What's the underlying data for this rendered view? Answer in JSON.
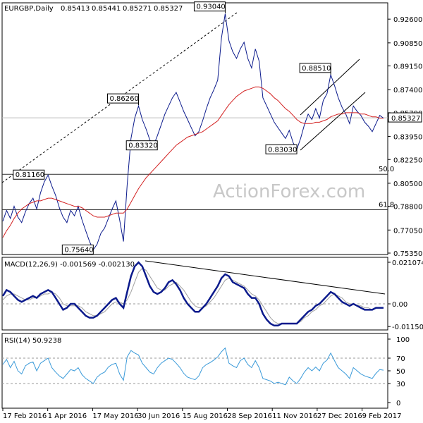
{
  "header": {
    "title": "EURGBP,Daily",
    "ohlc": [
      "0.85413",
      "0.85441",
      "0.85271",
      "0.85327"
    ]
  },
  "watermark": "ActionForex.com",
  "colors": {
    "price": "#0b1a8c",
    "ma": "#d32020",
    "macd": "#0b1a8c",
    "signal": "#a0a0a0",
    "rsi": "#3a9ad9",
    "hline": "#2f2f2f"
  },
  "chart_data": [
    {
      "type": "line",
      "title": "EURGBP,Daily",
      "ylim": [
        0.7535,
        0.937
      ],
      "y_ticks": [
        "0.92600",
        "0.90850",
        "0.89150",
        "0.87400",
        "0.85700",
        "0.83950",
        "0.82250",
        "0.80500",
        "0.78800",
        "0.77050",
        "0.75350"
      ],
      "current_price": "0.85327",
      "x_labels": [
        "17 Feb 2016",
        "1 Apr 2016",
        "17 May 2016",
        "30 Jun 2016",
        "15 Aug 2016",
        "28 Sep 2016",
        "11 Nov 2016",
        "27 Dec 2016",
        "9 Feb 2017"
      ],
      "series": [
        {
          "values": [
            0.777,
            0.785,
            0.779,
            0.788,
            0.78,
            0.776,
            0.784,
            0.79,
            0.794,
            0.786,
            0.798,
            0.806,
            0.811,
            0.803,
            0.796,
            0.787,
            0.78,
            0.776,
            0.785,
            0.781,
            0.788,
            0.778,
            0.77,
            0.762,
            0.756,
            0.76,
            0.768,
            0.772,
            0.779,
            0.786,
            0.792,
            0.778,
            0.762,
            0.804,
            0.838,
            0.853,
            0.862,
            0.852,
            0.845,
            0.837,
            0.833,
            0.84,
            0.848,
            0.856,
            0.862,
            0.868,
            0.872,
            0.865,
            0.858,
            0.852,
            0.846,
            0.84,
            0.843,
            0.851,
            0.86,
            0.868,
            0.874,
            0.881,
            0.912,
            0.93,
            0.91,
            0.902,
            0.897,
            0.904,
            0.909,
            0.897,
            0.89,
            0.904,
            0.895,
            0.868,
            0.862,
            0.856,
            0.85,
            0.846,
            0.842,
            0.838,
            0.844,
            0.835,
            0.83,
            0.838,
            0.848,
            0.856,
            0.852,
            0.86,
            0.853,
            0.866,
            0.871,
            0.885,
            0.877,
            0.868,
            0.861,
            0.856,
            0.849,
            0.862,
            0.858,
            0.855,
            0.85,
            0.847,
            0.843,
            0.849,
            0.855,
            0.853
          ]
        },
        {
          "values": [
            0.765,
            0.77,
            0.774,
            0.779,
            0.783,
            0.786,
            0.788,
            0.79,
            0.791,
            0.792,
            0.792,
            0.793,
            0.794,
            0.794,
            0.793,
            0.792,
            0.791,
            0.79,
            0.789,
            0.788,
            0.788,
            0.787,
            0.785,
            0.783,
            0.781,
            0.78,
            0.78,
            0.78,
            0.781,
            0.782,
            0.783,
            0.783,
            0.783,
            0.786,
            0.791,
            0.796,
            0.801,
            0.805,
            0.809,
            0.812,
            0.815,
            0.818,
            0.821,
            0.824,
            0.827,
            0.83,
            0.833,
            0.835,
            0.837,
            0.839,
            0.84,
            0.841,
            0.842,
            0.843,
            0.845,
            0.847,
            0.849,
            0.851,
            0.855,
            0.859,
            0.863,
            0.866,
            0.869,
            0.871,
            0.873,
            0.874,
            0.875,
            0.876,
            0.876,
            0.875,
            0.873,
            0.871,
            0.868,
            0.866,
            0.863,
            0.86,
            0.858,
            0.855,
            0.852,
            0.85,
            0.849,
            0.849,
            0.849,
            0.85,
            0.85,
            0.851,
            0.852,
            0.854,
            0.855,
            0.856,
            0.856,
            0.857,
            0.857,
            0.857,
            0.857,
            0.856,
            0.856,
            0.855,
            0.854,
            0.854,
            0.853,
            0.853
          ]
        }
      ],
      "annotations": [
        {
          "label": "0.81160",
          "x": 11,
          "y": 0.8116
        },
        {
          "label": "0.75640",
          "x": 24,
          "y": 0.7564
        },
        {
          "label": "0.86260",
          "x": 36,
          "y": 0.8626
        },
        {
          "label": "0.83320",
          "x": 41,
          "y": 0.8332
        },
        {
          "label": "0.93040",
          "x": 59,
          "y": 0.9304
        },
        {
          "label": "0.83030",
          "x": 78,
          "y": 0.8303
        },
        {
          "label": "0.88510",
          "x": 87,
          "y": 0.8851
        }
      ],
      "fib_levels": [
        {
          "label": "50.0",
          "y": 0.8116
        },
        {
          "label": "61.8",
          "y": 0.7855
        }
      ]
    },
    {
      "type": "line",
      "title": "MACD(12,26,9) -0.001569 -0.002130",
      "ylim": [
        -0.0125,
        0.0225
      ],
      "y_ticks": [
        "0.021074",
        "0.00",
        "-0.011507"
      ],
      "series": [
        {
          "values": [
            0.004,
            0.007,
            0.006,
            0.004,
            0.002,
            0.001,
            0.002,
            0.003,
            0.004,
            0.003,
            0.005,
            0.006,
            0.007,
            0.006,
            0.003,
            0.0,
            -0.003,
            -0.002,
            0.0,
            0.0,
            -0.002,
            -0.004,
            -0.006,
            -0.007,
            -0.007,
            -0.006,
            -0.004,
            -0.002,
            0.0,
            0.002,
            0.003,
            0.0,
            -0.002,
            0.006,
            0.014,
            0.019,
            0.021,
            0.019,
            0.014,
            0.009,
            0.006,
            0.005,
            0.006,
            0.008,
            0.011,
            0.012,
            0.01,
            0.007,
            0.003,
            0.0,
            -0.002,
            -0.004,
            -0.004,
            -0.002,
            0.0,
            0.003,
            0.006,
            0.009,
            0.013,
            0.015,
            0.014,
            0.011,
            0.01,
            0.009,
            0.008,
            0.005,
            0.003,
            0.003,
            0.0,
            -0.005,
            -0.008,
            -0.01,
            -0.011,
            -0.011,
            -0.01,
            -0.01,
            -0.01,
            -0.01,
            -0.01,
            -0.008,
            -0.006,
            -0.004,
            -0.003,
            -0.001,
            0.0,
            0.002,
            0.004,
            0.006,
            0.005,
            0.003,
            0.001,
            0.0,
            -0.001,
            0.0,
            -0.001,
            -0.002,
            -0.003,
            -0.003,
            -0.003,
            -0.002,
            -0.002,
            -0.002
          ]
        },
        {
          "values": [
            0.002,
            0.004,
            0.005,
            0.005,
            0.004,
            0.003,
            0.002,
            0.002,
            0.003,
            0.003,
            0.004,
            0.005,
            0.005,
            0.006,
            0.005,
            0.003,
            0.0,
            -0.001,
            -0.001,
            -0.001,
            -0.001,
            -0.002,
            -0.004,
            -0.005,
            -0.006,
            -0.006,
            -0.005,
            -0.004,
            -0.002,
            0.0,
            0.001,
            0.001,
            0.0,
            0.002,
            0.006,
            0.011,
            0.016,
            0.018,
            0.017,
            0.014,
            0.011,
            0.008,
            0.007,
            0.007,
            0.009,
            0.01,
            0.011,
            0.009,
            0.007,
            0.004,
            0.001,
            -0.001,
            -0.002,
            -0.002,
            -0.001,
            0.001,
            0.003,
            0.006,
            0.009,
            0.012,
            0.013,
            0.012,
            0.011,
            0.01,
            0.009,
            0.007,
            0.005,
            0.004,
            0.002,
            -0.001,
            -0.004,
            -0.007,
            -0.009,
            -0.01,
            -0.01,
            -0.01,
            -0.01,
            -0.01,
            -0.01,
            -0.009,
            -0.007,
            -0.006,
            -0.004,
            -0.003,
            -0.001,
            0.0,
            0.002,
            0.004,
            0.005,
            0.004,
            0.003,
            0.001,
            0.0,
            0.0,
            -0.001,
            -0.001,
            -0.002,
            -0.002,
            -0.003,
            -0.002,
            -0.002,
            -0.002
          ]
        }
      ]
    },
    {
      "type": "line",
      "title": "RSI(14) 50.9238",
      "ylim": [
        0,
        100
      ],
      "y_ticks": [
        "100",
        "70",
        "50",
        "30",
        "0"
      ],
      "series": [
        {
          "values": [
            60,
            68,
            55,
            65,
            50,
            45,
            58,
            62,
            64,
            50,
            62,
            66,
            70,
            55,
            48,
            42,
            38,
            45,
            52,
            50,
            55,
            44,
            38,
            34,
            30,
            40,
            45,
            48,
            56,
            60,
            62,
            45,
            35,
            72,
            82,
            78,
            75,
            62,
            55,
            48,
            45,
            55,
            62,
            66,
            70,
            68,
            62,
            55,
            46,
            40,
            38,
            36,
            42,
            55,
            60,
            63,
            67,
            72,
            80,
            86,
            62,
            58,
            55,
            66,
            70,
            60,
            55,
            66,
            55,
            38,
            36,
            34,
            30,
            32,
            30,
            28,
            40,
            34,
            30,
            38,
            48,
            55,
            50,
            56,
            50,
            62,
            67,
            78,
            66,
            55,
            50,
            45,
            38,
            55,
            50,
            45,
            42,
            40,
            38,
            46,
            52,
            51
          ]
        }
      ]
    }
  ]
}
